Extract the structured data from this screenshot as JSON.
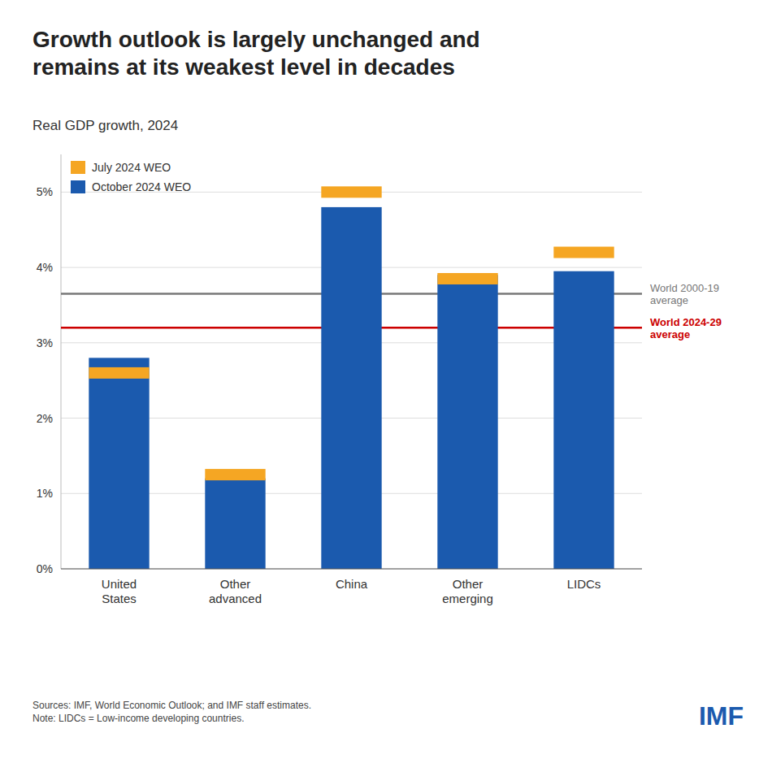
{
  "chart_data": {
    "type": "bar",
    "title": "Growth outlook is largely unchanged and\nremains at its weakest level in decades",
    "subtitle": "Real GDP growth, 2024",
    "categories": [
      "United\nStates",
      "Other\nadvanced",
      "China",
      "Other\nemerging",
      "LIDCs"
    ],
    "series": [
      {
        "name": "July 2024 WEO",
        "color": "#F5A623",
        "type": "marker",
        "marker": "square",
        "values": [
          2.6,
          1.25,
          5.0,
          3.85,
          4.2
        ]
      },
      {
        "name": "October 2024 WEO",
        "color": "#1B5AAE",
        "type": "bar",
        "values": [
          2.8,
          1.2,
          4.8,
          3.9,
          3.95
        ]
      }
    ],
    "reference_lines": [
      {
        "value": 3.65,
        "label": "World 2000-19\naverage",
        "color": "#777777"
      },
      {
        "value": 3.2,
        "label": "World 2024-29\naverage",
        "color": "#CC0000"
      }
    ],
    "ylim": [
      0,
      5.5
    ],
    "yticks": [
      {
        "value": 0,
        "label": "0%"
      },
      {
        "value": 1,
        "label": "1%"
      },
      {
        "value": 2,
        "label": "2%"
      },
      {
        "value": 3,
        "label": "3%"
      },
      {
        "value": 4,
        "label": "4%"
      },
      {
        "value": 5,
        "label": "5%"
      }
    ],
    "grid": true,
    "legend": "upper left",
    "source": "Sources: IMF, World Economic Outlook; and IMF staff estimates.\nNote: LIDCs = Low-income developing countries.",
    "logo_text": "IMF",
    "logo_color": "#1B5AAE"
  }
}
